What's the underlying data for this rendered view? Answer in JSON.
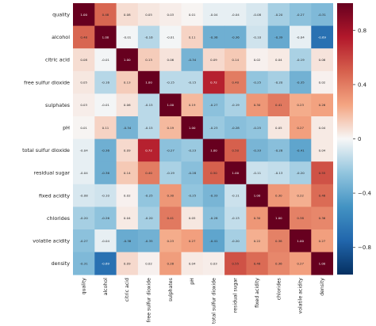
{
  "chart_data": {
    "type": "heatmap",
    "title": "",
    "variables": [
      "quality",
      "alcohol",
      "citric acid",
      "free sulfur dioxide",
      "sulphates",
      "pH",
      "total sulfur dioxide",
      "residual sugar",
      "fixed acidity",
      "chlorides",
      "volatile acidity",
      "density"
    ],
    "values": [
      [
        1.0,
        0.48,
        0.08,
        0.05,
        0.03,
        0.01,
        -0.04,
        -0.04,
        -0.08,
        -0.2,
        -0.27,
        -0.31
      ],
      [
        0.48,
        1.0,
        -0.01,
        -0.16,
        -0.01,
        0.11,
        -0.36,
        -0.36,
        -0.1,
        -0.39,
        -0.04,
        -0.69
      ],
      [
        0.08,
        -0.01,
        1.0,
        0.13,
        0.06,
        -0.34,
        0.09,
        0.14,
        0.02,
        0.04,
        -0.19,
        0.06
      ],
      [
        0.05,
        -0.16,
        0.13,
        1.0,
        -0.15,
        -0.15,
        0.72,
        0.4,
        -0.25,
        -0.2,
        -0.35,
        0.02
      ],
      [
        0.03,
        -0.01,
        0.06,
        -0.15,
        1.0,
        0.19,
        -0.27,
        -0.19,
        0.3,
        0.41,
        0.23,
        0.26
      ],
      [
        0.01,
        0.11,
        -0.34,
        -0.15,
        0.19,
        1.0,
        -0.23,
        -0.28,
        -0.25,
        0.05,
        0.27,
        0.04
      ],
      [
        -0.04,
        -0.36,
        0.09,
        0.72,
        -0.27,
        -0.23,
        1.0,
        0.5,
        -0.33,
        -0.28,
        -0.41,
        0.04
      ],
      [
        -0.04,
        -0.36,
        0.14,
        0.4,
        -0.19,
        -0.28,
        0.5,
        1.0,
        -0.11,
        -0.13,
        -0.2,
        0.55
      ],
      [
        -0.08,
        -0.1,
        0.02,
        -0.25,
        0.3,
        -0.25,
        -0.33,
        -0.11,
        1.0,
        0.3,
        0.22,
        0.46
      ],
      [
        -0.2,
        -0.26,
        0.04,
        -0.2,
        0.41,
        0.05,
        -0.28,
        -0.13,
        0.3,
        1.0,
        0.38,
        0.36
      ],
      [
        -0.27,
        -0.04,
        -0.38,
        -0.35,
        0.23,
        0.27,
        -0.41,
        -0.2,
        0.22,
        0.38,
        1.0,
        0.27
      ],
      [
        -0.31,
        -0.69,
        0.09,
        0.02,
        0.28,
        0.04,
        0.03,
        0.55,
        0.46,
        0.36,
        0.27,
        1.0
      ]
    ],
    "cell_labels": [
      [
        "1.00",
        "0.48",
        "0.08",
        "0.05",
        "0.03",
        "0.01",
        "-0.04",
        "-0.04",
        "-0.08",
        "-0.20",
        "-0.27",
        "-0.31"
      ],
      [
        "0.48",
        "1.00",
        "-0.01",
        "-0.16",
        "-0.01",
        "0.11",
        "-0.36",
        "-0.36",
        "-0.10",
        "-0.39",
        "-0.04",
        "-0.69"
      ],
      [
        "0.08",
        "-0.01",
        "1.00",
        "0.13",
        "0.06",
        "-0.34",
        "0.09",
        "0.14",
        "0.02",
        "0.04",
        "-0.19",
        "0.06"
      ],
      [
        "0.05",
        "-0.16",
        "0.13",
        "1.00",
        "-0.15",
        "-0.15",
        "0.72",
        "0.40",
        "-0.25",
        "-0.20",
        "-0.35",
        "0.02"
      ],
      [
        "0.03",
        "-0.01",
        "0.06",
        "-0.15",
        "1.00",
        "0.19",
        "-0.27",
        "-0.19",
        "0.30",
        "0.41",
        "0.23",
        "0.26"
      ],
      [
        "0.01",
        "0.11",
        "-0.34",
        "-0.15",
        "0.19",
        "1.00",
        "-0.23",
        "-0.28",
        "-0.25",
        "0.05",
        "0.27",
        "0.04"
      ],
      [
        "-0.04",
        "-0.36",
        "0.09",
        "0.72",
        "-0.27",
        "-0.23",
        "1.00",
        "0.50",
        "-0.33",
        "-0.28",
        "-0.41",
        "0.04"
      ],
      [
        "-0.04",
        "-0.36",
        "0.14",
        "0.40",
        "-0.19",
        "-0.28",
        "0.50",
        "1.00",
        "-0.11",
        "-0.13",
        "-0.20",
        "0.55"
      ],
      [
        "-0.08",
        "-0.10",
        "0.02",
        "-0.25",
        "0.30",
        "-0.25",
        "-0.33",
        "-0.11",
        "1.00",
        "0.30",
        "0.22",
        "0.46"
      ],
      [
        "-0.20",
        "-0.26",
        "0.04",
        "-0.20",
        "0.41",
        "0.05",
        "-0.28",
        "-0.13",
        "0.30",
        "1.00",
        "0.38",
        "0.36"
      ],
      [
        "-0.27",
        "-0.04",
        "-0.38",
        "-0.35",
        "0.23",
        "0.27",
        "-0.41",
        "-0.20",
        "0.22",
        "0.38",
        "1.00",
        "0.27"
      ],
      [
        "-0.31",
        "-0.69",
        "0.09",
        "0.02",
        "0.28",
        "0.04",
        "0.03",
        "0.55",
        "0.46",
        "0.36",
        "0.27",
        "1.00"
      ]
    ],
    "colorbar": {
      "range": [
        -1,
        1
      ],
      "ticks": [
        0.8,
        0.4,
        0,
        -0.4,
        -0.8
      ],
      "tick_labels": [
        "0.8",
        "0.4",
        "0",
        "−0.4",
        "−0.8"
      ],
      "colormap": "RdBu_r"
    },
    "xlabel": "",
    "ylabel": "",
    "grid": false,
    "legend": "colorbar-right"
  }
}
